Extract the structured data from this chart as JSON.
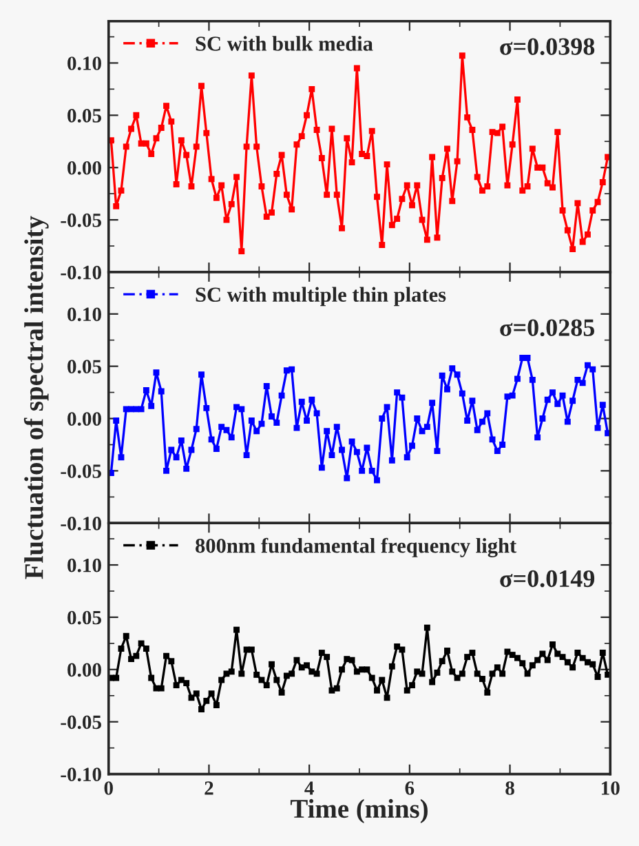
{
  "chart_data": [
    {
      "type": "line",
      "xlim": [
        0,
        10
      ],
      "ylim": [
        -0.1,
        0.14
      ],
      "yticks": [
        {
          "value": -0.1,
          "label": "-0.10"
        },
        {
          "value": -0.05,
          "label": "-0.05"
        },
        {
          "value": 0.0,
          "label": "0.00"
        },
        {
          "value": 0.05,
          "label": "0.05"
        },
        {
          "value": 0.1,
          "label": "0.10"
        }
      ],
      "xticks": [
        0,
        2,
        4,
        6,
        8,
        10
      ],
      "tick_labels": "y",
      "marker": "square",
      "line_style": "solid",
      "legend": "top left",
      "grid": false,
      "x": [
        0.05,
        0.15,
        0.25,
        0.35,
        0.45,
        0.55,
        0.65,
        0.75,
        0.85,
        0.95,
        1.05,
        1.15,
        1.25,
        1.35,
        1.45,
        1.55,
        1.65,
        1.75,
        1.85,
        1.95,
        2.05,
        2.15,
        2.25,
        2.35,
        2.45,
        2.55,
        2.65,
        2.75,
        2.85,
        2.95,
        3.05,
        3.15,
        3.25,
        3.35,
        3.45,
        3.55,
        3.65,
        3.75,
        3.85,
        3.95,
        4.05,
        4.15,
        4.25,
        4.35,
        4.45,
        4.55,
        4.65,
        4.75,
        4.85,
        4.95,
        5.05,
        5.15,
        5.25,
        5.35,
        5.45,
        5.55,
        5.65,
        5.75,
        5.85,
        5.95,
        6.05,
        6.15,
        6.25,
        6.35,
        6.45,
        6.55,
        6.65,
        6.75,
        6.85,
        6.95,
        7.05,
        7.15,
        7.25,
        7.35,
        7.45,
        7.55,
        7.65,
        7.75,
        7.85,
        7.95,
        8.05,
        8.15,
        8.25,
        8.35,
        8.45,
        8.55,
        8.65,
        8.75,
        8.85,
        8.95,
        9.05,
        9.15,
        9.25,
        9.35,
        9.45,
        9.55,
        9.65,
        9.75,
        9.85,
        9.95
      ],
      "series": [
        {
          "name": "SC with bulk media",
          "color": "#ff0000",
          "values": [
            0.026,
            -0.037,
            -0.022,
            0.02,
            0.037,
            0.05,
            0.023,
            0.023,
            0.013,
            0.028,
            0.038,
            0.059,
            0.044,
            -0.016,
            0.026,
            0.012,
            -0.018,
            0.02,
            0.078,
            0.033,
            -0.011,
            -0.029,
            -0.017,
            -0.05,
            -0.035,
            -0.009,
            -0.08,
            0.02,
            0.088,
            0.02,
            -0.018,
            -0.047,
            -0.043,
            -0.006,
            0.012,
            -0.026,
            -0.04,
            0.022,
            0.03,
            0.05,
            0.075,
            0.036,
            0.009,
            -0.026,
            0.037,
            -0.026,
            -0.058,
            0.028,
            0.005,
            0.095,
            0.013,
            0.011,
            0.035,
            -0.028,
            -0.074,
            0.003,
            -0.055,
            -0.049,
            -0.03,
            -0.017,
            -0.036,
            -0.017,
            -0.05,
            -0.069,
            0.01,
            -0.067,
            -0.01,
            0.018,
            -0.032,
            0.006,
            0.107,
            0.048,
            0.036,
            -0.009,
            -0.022,
            -0.018,
            0.034,
            0.033,
            0.039,
            -0.017,
            0.022,
            0.065,
            -0.022,
            -0.018,
            0.018,
            0.0,
            0.0,
            -0.015,
            -0.019,
            0.034,
            -0.041,
            -0.06,
            -0.078,
            -0.034,
            -0.071,
            -0.064,
            -0.041,
            -0.033,
            -0.014,
            0.01
          ]
        }
      ],
      "annotations": [
        "σ=0.0398"
      ]
    },
    {
      "type": "line",
      "xlim": [
        0,
        10
      ],
      "ylim": [
        -0.1,
        0.14
      ],
      "yticks": [
        {
          "value": -0.1,
          "label": "-0.10"
        },
        {
          "value": -0.05,
          "label": "-0.05"
        },
        {
          "value": 0.0,
          "label": "0.00"
        },
        {
          "value": 0.05,
          "label": "0.05"
        },
        {
          "value": 0.1,
          "label": "0.10"
        }
      ],
      "xticks": [
        0,
        2,
        4,
        6,
        8,
        10
      ],
      "tick_labels": "y",
      "marker": "square",
      "line_style": "solid",
      "legend": "top left",
      "grid": false,
      "ylabel": "Fluctuation of spectral intensity",
      "x": [
        0.05,
        0.15,
        0.25,
        0.35,
        0.45,
        0.55,
        0.65,
        0.75,
        0.85,
        0.95,
        1.05,
        1.15,
        1.25,
        1.35,
        1.45,
        1.55,
        1.65,
        1.75,
        1.85,
        1.95,
        2.05,
        2.15,
        2.25,
        2.35,
        2.45,
        2.55,
        2.65,
        2.75,
        2.85,
        2.95,
        3.05,
        3.15,
        3.25,
        3.35,
        3.45,
        3.55,
        3.65,
        3.75,
        3.85,
        3.95,
        4.05,
        4.15,
        4.25,
        4.35,
        4.45,
        4.55,
        4.65,
        4.75,
        4.85,
        4.95,
        5.05,
        5.15,
        5.25,
        5.35,
        5.45,
        5.55,
        5.65,
        5.75,
        5.85,
        5.95,
        6.05,
        6.15,
        6.25,
        6.35,
        6.45,
        6.55,
        6.65,
        6.75,
        6.85,
        6.95,
        7.05,
        7.15,
        7.25,
        7.35,
        7.45,
        7.55,
        7.65,
        7.75,
        7.85,
        7.95,
        8.05,
        8.15,
        8.25,
        8.35,
        8.45,
        8.55,
        8.65,
        8.75,
        8.85,
        8.95,
        9.05,
        9.15,
        9.25,
        9.35,
        9.45,
        9.55,
        9.65,
        9.75,
        9.85,
        9.95
      ],
      "series": [
        {
          "name": "SC with multiple thin plates",
          "color": "#0000ff",
          "values": [
            -0.052,
            -0.002,
            -0.037,
            0.009,
            0.009,
            0.009,
            0.009,
            0.027,
            0.012,
            0.044,
            0.026,
            -0.05,
            -0.03,
            -0.037,
            -0.021,
            -0.048,
            -0.03,
            -0.01,
            0.042,
            0.01,
            -0.02,
            -0.029,
            -0.008,
            -0.011,
            -0.018,
            0.011,
            0.009,
            -0.035,
            -0.002,
            -0.012,
            -0.005,
            0.031,
            0.002,
            -0.004,
            0.022,
            0.046,
            0.047,
            -0.009,
            0.016,
            -0.002,
            0.018,
            0.005,
            -0.047,
            -0.012,
            -0.035,
            -0.008,
            -0.03,
            -0.057,
            -0.022,
            -0.032,
            -0.05,
            -0.028,
            -0.05,
            -0.059,
            0.0,
            0.011,
            -0.04,
            0.025,
            0.02,
            -0.037,
            -0.026,
            0.0,
            -0.012,
            -0.008,
            0.015,
            -0.031,
            0.041,
            0.028,
            0.048,
            0.042,
            0.024,
            -0.002,
            0.017,
            -0.011,
            -0.003,
            0.005,
            -0.02,
            -0.031,
            -0.025,
            0.021,
            0.022,
            0.038,
            0.058,
            0.058,
            0.037,
            -0.018,
            0.0,
            0.018,
            0.025,
            0.014,
            0.022,
            -0.003,
            0.017,
            0.037,
            0.034,
            0.051,
            0.047,
            -0.009,
            0.013,
            -0.014
          ]
        }
      ],
      "annotations": [
        "σ=0.0285"
      ]
    },
    {
      "type": "line",
      "xlim": [
        0,
        10
      ],
      "ylim": [
        -0.1,
        0.14
      ],
      "yticks": [
        {
          "value": -0.1,
          "label": "-0.10"
        },
        {
          "value": -0.05,
          "label": "-0.05"
        },
        {
          "value": 0.0,
          "label": "0.00"
        },
        {
          "value": 0.05,
          "label": "0.05"
        },
        {
          "value": 0.1,
          "label": "0.10"
        }
      ],
      "xticks": [
        0,
        2,
        4,
        6,
        8,
        10
      ],
      "marker": "square",
      "line_style": "solid",
      "legend": "top left",
      "grid": false,
      "xlabel": "Time (mins)",
      "x": [
        0.05,
        0.15,
        0.25,
        0.35,
        0.45,
        0.55,
        0.65,
        0.75,
        0.85,
        0.95,
        1.05,
        1.15,
        1.25,
        1.35,
        1.45,
        1.55,
        1.65,
        1.75,
        1.85,
        1.95,
        2.05,
        2.15,
        2.25,
        2.35,
        2.45,
        2.55,
        2.65,
        2.75,
        2.85,
        2.95,
        3.05,
        3.15,
        3.25,
        3.35,
        3.45,
        3.55,
        3.65,
        3.75,
        3.85,
        3.95,
        4.05,
        4.15,
        4.25,
        4.35,
        4.45,
        4.55,
        4.65,
        4.75,
        4.85,
        4.95,
        5.05,
        5.15,
        5.25,
        5.35,
        5.45,
        5.55,
        5.65,
        5.75,
        5.85,
        5.95,
        6.05,
        6.15,
        6.25,
        6.35,
        6.45,
        6.55,
        6.65,
        6.75,
        6.85,
        6.95,
        7.05,
        7.15,
        7.25,
        7.35,
        7.45,
        7.55,
        7.65,
        7.75,
        7.85,
        7.95,
        8.05,
        8.15,
        8.25,
        8.35,
        8.45,
        8.55,
        8.65,
        8.75,
        8.85,
        8.95,
        9.05,
        9.15,
        9.25,
        9.35,
        9.45,
        9.55,
        9.65,
        9.75,
        9.85,
        9.95
      ],
      "series": [
        {
          "name": "800nm fundamental frequency light",
          "color": "#000000",
          "values": [
            -0.008,
            -0.008,
            0.02,
            0.032,
            0.01,
            0.013,
            0.025,
            0.02,
            -0.008,
            -0.018,
            -0.018,
            0.013,
            0.008,
            -0.015,
            -0.01,
            -0.013,
            -0.027,
            -0.023,
            -0.038,
            -0.03,
            -0.023,
            -0.034,
            -0.01,
            -0.004,
            -0.002,
            0.038,
            -0.004,
            0.019,
            0.019,
            -0.005,
            -0.01,
            -0.015,
            0.005,
            -0.01,
            -0.022,
            -0.006,
            -0.004,
            0.009,
            0.002,
            0.004,
            -0.002,
            -0.004,
            0.016,
            0.012,
            -0.02,
            -0.018,
            0.0,
            0.01,
            0.009,
            -0.002,
            0.0,
            0.0,
            -0.008,
            -0.02,
            -0.01,
            -0.027,
            0.003,
            0.022,
            0.019,
            -0.02,
            -0.015,
            -0.002,
            -0.004,
            0.04,
            -0.012,
            -0.003,
            0.008,
            0.018,
            -0.002,
            -0.008,
            -0.004,
            0.012,
            0.016,
            -0.004,
            -0.009,
            -0.022,
            -0.004,
            0.002,
            -0.004,
            0.017,
            0.014,
            0.011,
            0.006,
            -0.004,
            0.004,
            0.009,
            0.015,
            0.009,
            0.024,
            0.015,
            0.012,
            0.007,
            0.002,
            0.016,
            0.011,
            0.007,
            0.005,
            -0.007,
            0.016,
            -0.005
          ]
        }
      ],
      "annotations": [
        "σ=0.0149"
      ]
    }
  ]
}
